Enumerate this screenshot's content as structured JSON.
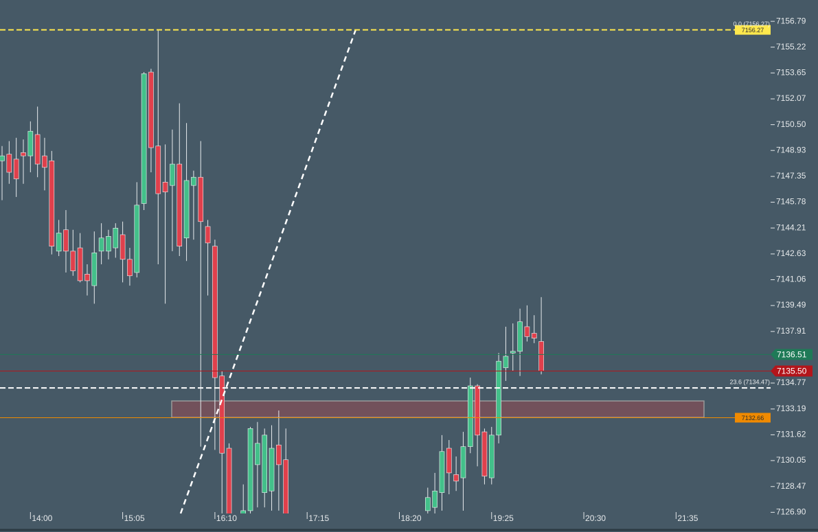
{
  "chart_data": {
    "type": "candlestick",
    "categories": [
      null,
      null,
      null,
      null,
      "14:00",
      null,
      null,
      null,
      null,
      null,
      null,
      null,
      null,
      null,
      null,
      null,
      null,
      "15:05",
      null,
      null,
      null,
      null,
      null,
      null,
      null,
      null,
      null,
      null,
      null,
      null,
      "16:10",
      null,
      null,
      null,
      null,
      null,
      null,
      null,
      null,
      null,
      null,
      null,
      null,
      "17:15",
      null,
      null,
      null,
      null,
      null,
      null,
      null,
      null,
      null,
      null,
      null,
      null,
      "18:20",
      null,
      null,
      null,
      null,
      null,
      null,
      null,
      null,
      null,
      null,
      null,
      null,
      "19:25",
      null,
      null,
      null,
      null,
      null,
      null,
      null,
      null,
      null,
      null,
      null,
      null,
      "20:30",
      null,
      null,
      null,
      null,
      null,
      null,
      null,
      null,
      null,
      null,
      null,
      null,
      "21:35",
      null,
      null,
      null,
      null,
      null,
      null,
      null,
      null,
      null,
      null,
      null,
      null,
      null
    ],
    "open": [
      7148.3,
      7148.7,
      7148.4,
      7148.8,
      7148.6,
      7149.9,
      7148.6,
      7148.3,
      7142.8,
      7144.1,
      7142.8,
      7143.0,
      7141.4,
      7140.7,
      7142.8,
      7142.8,
      7143.0,
      7143.8,
      7142.3,
      7141.5,
      7145.7,
      7153.7,
      7149.2,
      7147.0,
      7146.8,
      7148.1,
      7143.6,
      7146.8,
      7147.3,
      7144.3,
      7143.1,
      7135.2,
      7130.8,
      null,
      7126.5,
      7127.0,
      7129.8,
      7128.1,
      7128.2,
      7131.0,
      7130.1,
      null,
      null,
      null,
      null,
      null,
      null,
      null,
      null,
      null,
      null,
      null,
      null,
      null,
      null,
      null,
      null,
      null,
      null,
      null,
      7127.0,
      7127.2,
      7128.1,
      7130.8,
      7129.2,
      7129.0,
      7130.9,
      7134.6,
      7131.8,
      7129.0,
      7131.6,
      7135.7,
      7136.6,
      7136.7,
      7138.2,
      7137.8,
      7137.3,
      null,
      null,
      null,
      null,
      null,
      null,
      null,
      null,
      null,
      null,
      null,
      null,
      null,
      null,
      null,
      null,
      null,
      null,
      null,
      null,
      null,
      null,
      null,
      null,
      null,
      null,
      null,
      null,
      null,
      null,
      null,
      null
    ],
    "high": [
      7149.2,
      7149.5,
      7149.7,
      7149.6,
      7150.7,
      7151.6,
      7149.7,
      7148.9,
      7144.7,
      7145.3,
      7144.1,
      7143.9,
      7142.0,
      7144.0,
      7144.5,
      7144.1,
      7144.5,
      7144.6,
      7143.0,
      7147.0,
      7153.7,
      7153.9,
      7156.3,
      7149.3,
      7150.2,
      7151.8,
      7150.6,
      7147.7,
      7149.5,
      7144.7,
      7143.5,
      7135.5,
      7131.1,
      null,
      7128.6,
      7132.1,
      7132.4,
      7132.0,
      7132.2,
      7133.1,
      7132.0,
      null,
      null,
      null,
      null,
      null,
      null,
      null,
      null,
      null,
      null,
      null,
      null,
      null,
      null,
      null,
      null,
      null,
      null,
      null,
      7128.4,
      7129.3,
      7131.6,
      7131.3,
      7130.3,
      7131.8,
      7135.1,
      7134.7,
      7132.0,
      7132.1,
      7136.6,
      7138.2,
      7138.4,
      7139.3,
      7139.5,
      7138.9,
      7140.0,
      null,
      null,
      null,
      null,
      null,
      null,
      null,
      null,
      null,
      null,
      null,
      null,
      null,
      null,
      null,
      null,
      null,
      null,
      null,
      null,
      null,
      null,
      null,
      null,
      null,
      null,
      null,
      null,
      null,
      null,
      null,
      null
    ],
    "low": [
      7145.9,
      7146.9,
      7146.1,
      7146.9,
      7147.6,
      7147.3,
      7146.5,
      7142.6,
      7142.5,
      7141.5,
      7141.3,
      7140.9,
      7140.1,
      7139.6,
      7142.0,
      7142.3,
      7142.4,
      7140.9,
      7140.7,
      7141.2,
      7145.3,
      7147.6,
      7142.0,
      7139.6,
      7142.8,
      7142.5,
      7142.2,
      7143.5,
      7130.9,
      7140.1,
      7130.7,
      7125.9,
      7125.5,
      null,
      7126.3,
      7126.5,
      7127.2,
      7127.2,
      7127.0,
      7127.0,
      7125.5,
      null,
      null,
      null,
      null,
      null,
      null,
      null,
      null,
      null,
      null,
      null,
      null,
      null,
      null,
      null,
      null,
      null,
      null,
      null,
      7126.3,
      7126.3,
      7127.0,
      7128.0,
      7128.2,
      7127.0,
      7130.5,
      7129.7,
      7128.6,
      7128.6,
      7131.1,
      7134.9,
      7135.5,
      7135.2,
      7137.3,
      7137.2,
      7135.3,
      null,
      null,
      null,
      null,
      null,
      null,
      null,
      null,
      null,
      null,
      null,
      null,
      null,
      null,
      null,
      null,
      null,
      null,
      null,
      null,
      null,
      null,
      null,
      null,
      null,
      null,
      null,
      null,
      null,
      null,
      null,
      null
    ],
    "close": [
      7148.6,
      7147.6,
      7147.2,
      7148.6,
      7150.1,
      7148.1,
      7147.9,
      7143.1,
      7143.9,
      7142.8,
      7141.6,
      7141.0,
      7141.0,
      7142.7,
      7143.6,
      7143.7,
      7144.2,
      7142.3,
      7141.3,
      7145.6,
      7153.6,
      7149.1,
      7146.3,
      7146.4,
      7148.1,
      7143.1,
      7147.1,
      7147.3,
      7144.6,
      7143.3,
      7135.1,
      7130.5,
      7125.9,
      null,
      7127.0,
      7132.0,
      7131.1,
      7131.6,
      7130.8,
      7129.8,
      7125.9,
      null,
      null,
      null,
      null,
      null,
      null,
      null,
      null,
      null,
      null,
      null,
      null,
      null,
      null,
      null,
      null,
      null,
      null,
      null,
      7127.8,
      7128.2,
      7130.6,
      7129.3,
      7128.8,
      7130.9,
      7134.6,
      7131.6,
      7129.1,
      7131.6,
      7136.1,
      7136.4,
      7136.7,
      7138.5,
      7137.6,
      7137.5,
      7135.5,
      null,
      null,
      null,
      null,
      null,
      null,
      null,
      null,
      null,
      null,
      null,
      null,
      null,
      null,
      null,
      null,
      null,
      null,
      null,
      null,
      null,
      null,
      null,
      null,
      null,
      null,
      null,
      null,
      null,
      null,
      null,
      null
    ],
    "up_color": "#43c08a",
    "down_color": "#e0404c",
    "ylim": [
      7126.83,
      7158.09
    ],
    "yticks": [
      7156.79,
      7155.22,
      7153.65,
      7152.07,
      {
        "value": 7150.5,
        "label": "7150.50"
      },
      7148.93,
      7147.35,
      7145.78,
      7144.21,
      7142.63,
      7141.06,
      7139.49,
      7137.91,
      7134.77,
      7133.19,
      7131.62,
      7130.05,
      7128.47,
      {
        "value": 7126.9,
        "label": "7126.90"
      }
    ],
    "levels": [
      {
        "value": 7156.27,
        "label": "0.0 (7156.27)",
        "tag": "7156.27",
        "color": "#ffe84d",
        "style": "dashed",
        "tag_position": "plot"
      },
      {
        "value": 7134.47,
        "label": "23.6 (7134.47)",
        "color": "#ffffff",
        "style": "dashed"
      },
      {
        "value": 7136.51,
        "tag": "7136.51",
        "color": "#1f7a57",
        "style": "solid",
        "tag_position": "axis"
      },
      {
        "value": 7135.5,
        "tag": "7135.50",
        "color": "#b3151b",
        "style": "solid",
        "tag_position": "axis"
      },
      {
        "value": 7132.66,
        "tag": "7132.66",
        "color": "#f08a00",
        "style": "solid",
        "tag_position": "plot"
      }
    ],
    "zone": {
      "low": 7132.68,
      "high": 7133.68
    }
  }
}
